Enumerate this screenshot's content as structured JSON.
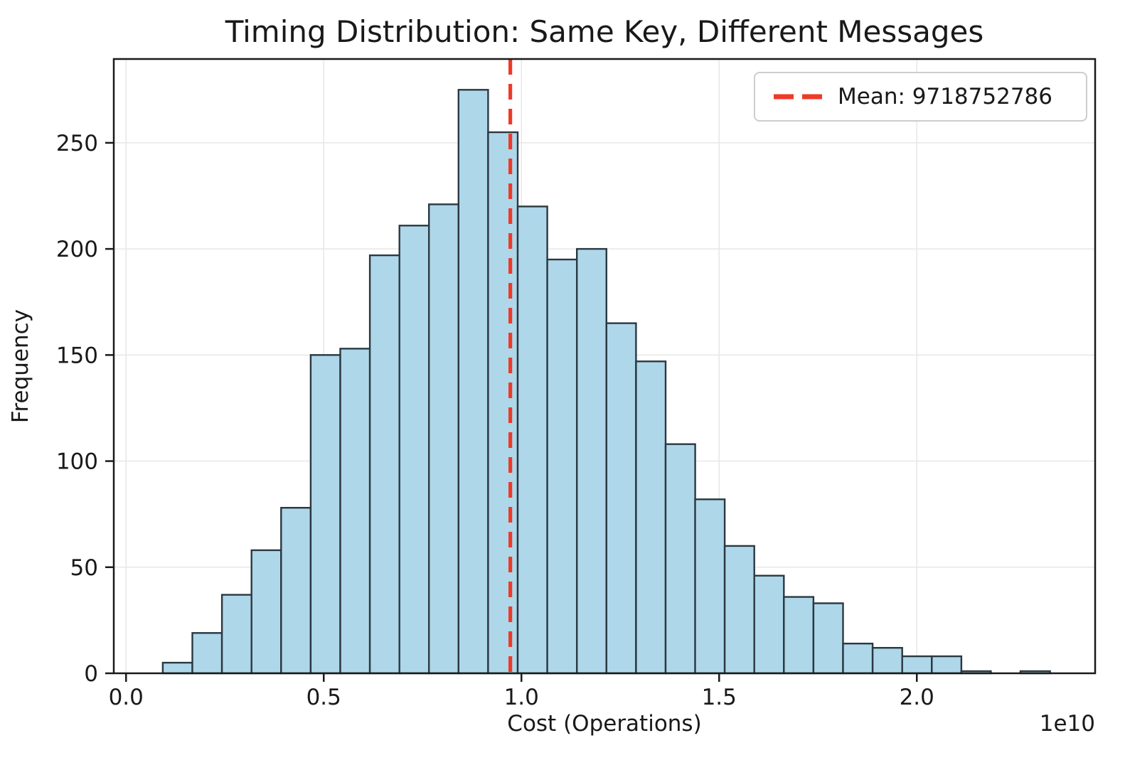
{
  "chart_data": {
    "type": "histogram",
    "title": "Timing Distribution: Same Key, Different Messages",
    "xlabel": "Cost (Operations)",
    "ylabel": "Frequency",
    "x_offset_label": "1e10",
    "x_unit": 10000000000,
    "legend": {
      "label": "Mean: 9718752786",
      "position": "upper right"
    },
    "mean_value": 9718752786,
    "bins": {
      "start": 0.093,
      "width": 0.0748,
      "unit_note": "values in multiples of 1e10 operations"
    },
    "frequencies": [
      5,
      19,
      37,
      58,
      78,
      150,
      153,
      197,
      211,
      221,
      275,
      255,
      220,
      195,
      200,
      165,
      147,
      108,
      82,
      60,
      46,
      36,
      33,
      14,
      12,
      8,
      8,
      1,
      0,
      1
    ],
    "x_ticks": [
      0.0,
      0.5,
      1.0,
      1.5,
      2.0
    ],
    "x_tick_labels": [
      "0.0",
      "0.5",
      "1.0",
      "1.5",
      "2.0"
    ],
    "y_ticks": [
      0,
      50,
      100,
      150,
      200,
      250
    ],
    "y_tick_labels": [
      "0",
      "50",
      "100",
      "150",
      "200",
      "250"
    ],
    "xlim": [
      -0.031,
      2.451
    ],
    "ylim": [
      0,
      289.5
    ],
    "grid": true,
    "colors": {
      "bar_fill": "#aed7ea",
      "bar_edge": "#2b3840",
      "mean_line": "#ee3a28",
      "grid": "#e7e7e7",
      "spine": "#1a1a1a",
      "text": "#191919",
      "legend_border": "#cdcdcd",
      "background": "#ffffff"
    }
  }
}
